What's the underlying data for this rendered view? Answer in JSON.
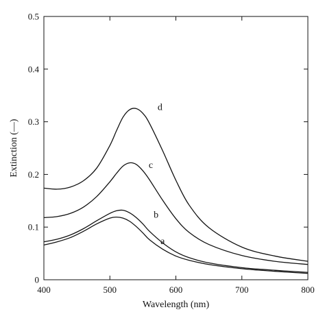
{
  "chart_data": {
    "type": "line",
    "title": "",
    "xlabel": "Wavelength (nm)",
    "ylabel": "Extinction (—)",
    "xlim": [
      400,
      800
    ],
    "ylim": [
      0,
      0.5
    ],
    "xticks": [
      400,
      500,
      600,
      700,
      800
    ],
    "yticks": [
      0,
      0.1,
      0.2,
      0.3,
      0.4,
      0.5
    ],
    "xtick_labels": [
      "400",
      "500",
      "600",
      "700",
      "800"
    ],
    "ytick_labels": [
      "0",
      "0.1",
      "0.2",
      "0.3",
      "0.4",
      "0.5"
    ],
    "grid": false,
    "legend": "none",
    "series": [
      {
        "name": "a",
        "x": [
          400,
          420,
          440,
          460,
          480,
          500,
          510,
          520,
          530,
          540,
          550,
          560,
          580,
          600,
          620,
          650,
          700,
          750,
          800
        ],
        "y": [
          0.066,
          0.072,
          0.08,
          0.092,
          0.106,
          0.117,
          0.119,
          0.117,
          0.111,
          0.101,
          0.089,
          0.076,
          0.058,
          0.045,
          0.037,
          0.029,
          0.021,
          0.016,
          0.012
        ]
      },
      {
        "name": "b",
        "x": [
          400,
          420,
          440,
          460,
          480,
          500,
          510,
          520,
          530,
          540,
          550,
          560,
          580,
          600,
          620,
          650,
          700,
          750,
          800
        ],
        "y": [
          0.072,
          0.077,
          0.085,
          0.097,
          0.112,
          0.126,
          0.131,
          0.132,
          0.127,
          0.118,
          0.106,
          0.092,
          0.07,
          0.053,
          0.042,
          0.032,
          0.023,
          0.018,
          0.014
        ]
      },
      {
        "name": "c",
        "x": [
          400,
          420,
          440,
          460,
          480,
          500,
          510,
          520,
          530,
          540,
          550,
          560,
          580,
          600,
          620,
          650,
          700,
          750,
          800
        ],
        "y": [
          0.118,
          0.12,
          0.126,
          0.138,
          0.158,
          0.186,
          0.202,
          0.216,
          0.222,
          0.219,
          0.207,
          0.19,
          0.151,
          0.116,
          0.09,
          0.067,
          0.046,
          0.035,
          0.029
        ]
      },
      {
        "name": "d",
        "x": [
          400,
          420,
          440,
          460,
          480,
          500,
          510,
          520,
          530,
          540,
          550,
          560,
          580,
          600,
          620,
          650,
          700,
          750,
          800
        ],
        "y": [
          0.174,
          0.172,
          0.176,
          0.188,
          0.212,
          0.255,
          0.283,
          0.309,
          0.323,
          0.325,
          0.316,
          0.297,
          0.245,
          0.189,
          0.142,
          0.099,
          0.062,
          0.045,
          0.035
        ]
      }
    ],
    "annotations": [
      {
        "text": "a",
        "x": 580,
        "y": 0.068
      },
      {
        "text": "b",
        "x": 570,
        "y": 0.118
      },
      {
        "text": "c",
        "x": 562,
        "y": 0.212
      },
      {
        "text": "d",
        "x": 576,
        "y": 0.322
      }
    ]
  }
}
